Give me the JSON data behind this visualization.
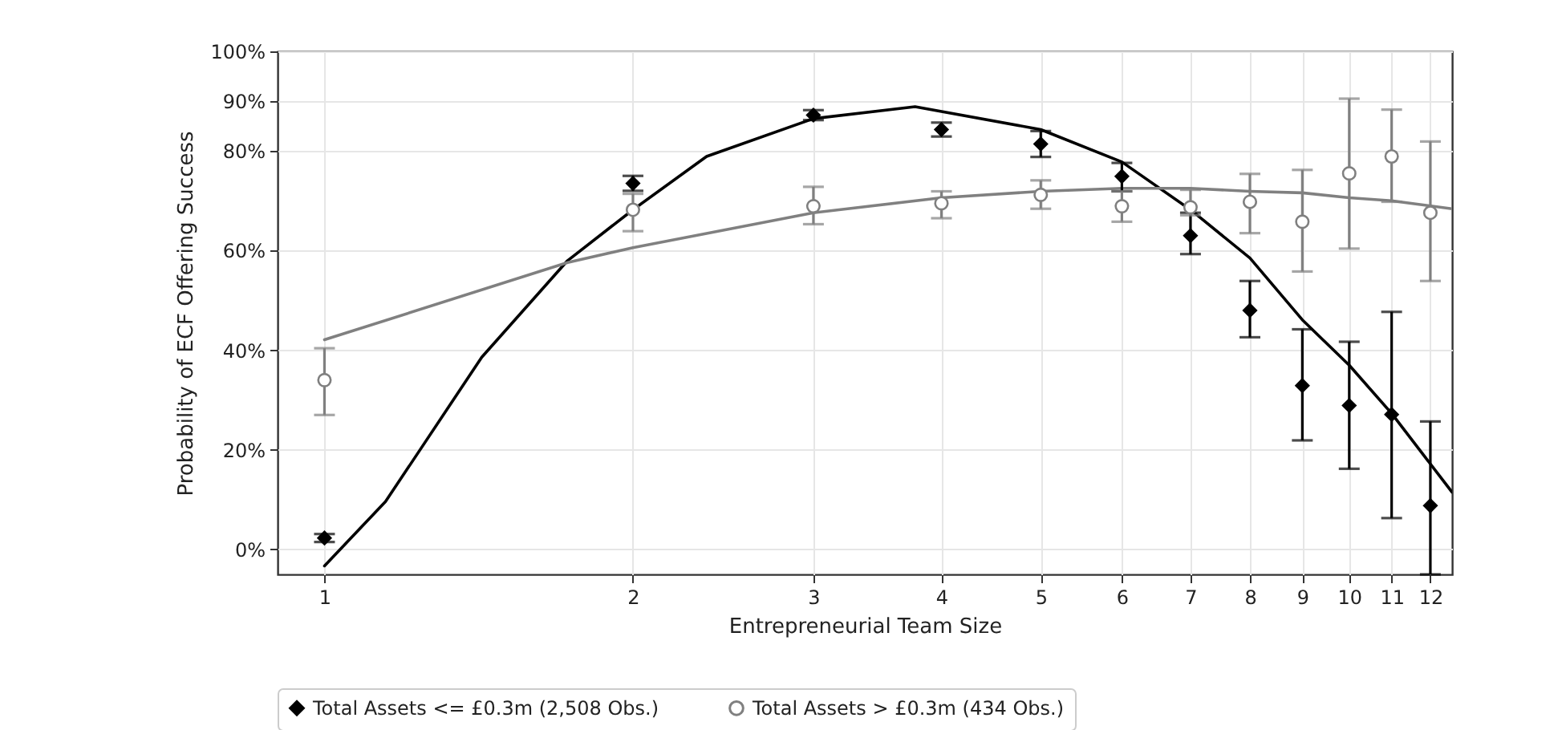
{
  "chart_data": {
    "type": "scatter",
    "xlabel": "Entrepreneurial Team Size",
    "ylabel": "Probability of ECF Offering Success",
    "log": "x",
    "grid": true,
    "legend": "bottom",
    "xlim": [
      0.9,
      12.6
    ],
    "xticks": [
      1,
      2,
      3,
      4,
      5,
      6,
      7,
      8,
      9,
      10,
      11,
      12
    ],
    "ylim": [
      -5,
      100
    ],
    "yticks": [
      {
        "value": 0,
        "label": "0%"
      },
      {
        "value": 20,
        "label": "20%"
      },
      {
        "value": 40,
        "label": "40%"
      },
      {
        "value": 60,
        "label": "60%"
      },
      {
        "value": 80,
        "label": "80%"
      },
      {
        "value": 90,
        "label": "90%"
      },
      {
        "value": 100,
        "label": "100%"
      }
    ],
    "series": [
      {
        "name": "Total Assets <= £0.3m (2,508 Obs.)",
        "color": "#000000",
        "marker": "diamond",
        "x": [
          1,
          2,
          3,
          4,
          5,
          6,
          7,
          8,
          9,
          10,
          11,
          12
        ],
        "values": [
          2.3,
          73.5,
          87.2,
          84.3,
          81.4,
          74.9,
          63.0,
          48.0,
          32.9,
          28.9,
          27.1,
          8.8
        ],
        "errors": [
          [
            1.5,
            3.1
          ],
          [
            72,
            75
          ],
          [
            86.2,
            88.2
          ],
          [
            82.9,
            85.7
          ],
          [
            78.8,
            84
          ],
          [
            71.9,
            77.6
          ],
          [
            59.3,
            67.6
          ],
          [
            42.6,
            53.9
          ],
          [
            21.9,
            44.2
          ],
          [
            16.2,
            41.7
          ],
          [
            6.3,
            47.7
          ],
          [
            -5,
            25.7
          ]
        ]
      },
      {
        "name": "Total Assets > £0.3m (434 Obs.)",
        "color": "#808080",
        "marker": "circle",
        "x": [
          1,
          2,
          3,
          4,
          5,
          6,
          7,
          8,
          9,
          10,
          11,
          12
        ],
        "values": [
          34.0,
          68.2,
          68.9,
          69.5,
          71.2,
          68.9,
          68.7,
          69.8,
          65.8,
          75.5,
          78.9,
          67.6
        ],
        "errors": [
          [
            27.0,
            40.4
          ],
          [
            63.9,
            71.4
          ],
          [
            65.3,
            72.8
          ],
          [
            66.5,
            71.9
          ],
          [
            68.4,
            74.1
          ],
          [
            65.8,
            71.9
          ],
          [
            67.1,
            72.2
          ],
          [
            63.5,
            75.4
          ],
          [
            55.8,
            76.2
          ],
          [
            60.4,
            90.5
          ],
          [
            69.8,
            88.3
          ],
          [
            53.9,
            81.9
          ]
        ]
      },
      {
        "type": "line",
        "color": "#000000",
        "x": [
          1,
          1.147,
          1.424,
          1.727,
          2,
          2.36,
          3,
          3.77,
          5,
          6,
          7,
          8,
          9,
          10,
          11,
          12.6
        ],
        "values": [
          -3.3,
          9.6,
          38.6,
          58.0,
          68.2,
          78.9,
          86.5,
          88.9,
          84.3,
          77.8,
          68.2,
          58.5,
          46.1,
          37.0,
          27.3,
          11.5
        ]
      },
      {
        "type": "line",
        "color": "#808080",
        "x": [
          1,
          1.727,
          2,
          3,
          4,
          5,
          6,
          7,
          8,
          9,
          10,
          11,
          12.6
        ],
        "values": [
          42.1,
          57.6,
          60.6,
          67.6,
          70.6,
          71.9,
          72.5,
          72.5,
          71.9,
          71.6,
          70.6,
          70.0,
          68.4
        ]
      }
    ]
  }
}
